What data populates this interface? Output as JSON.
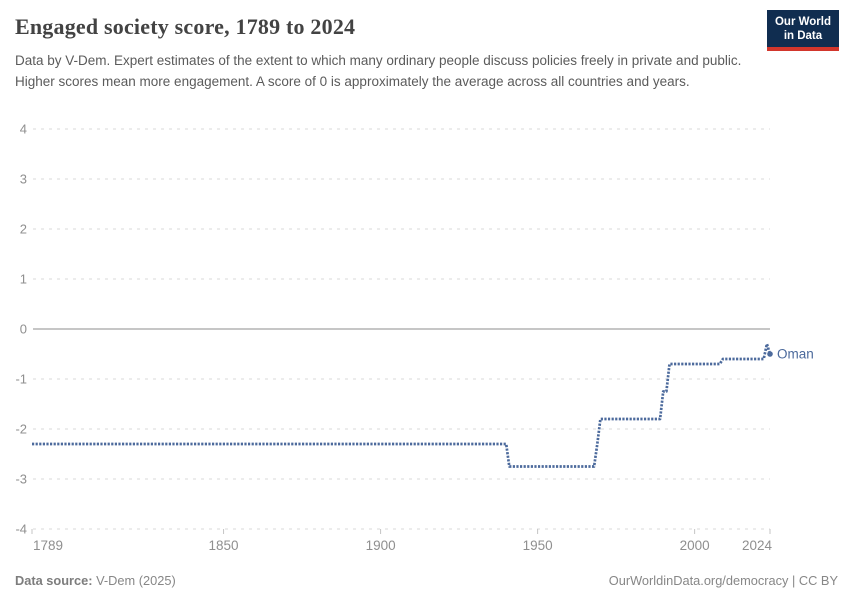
{
  "header": {
    "title": "Engaged society score, 1789 to 2024",
    "subtitle": "Data by V-Dem. Expert estimates of the extent to which many ordinary people discuss policies freely in private and public. Higher scores mean more engagement. A score of 0 is approximately the average across all countries and years.",
    "logo": {
      "line1": "Our World",
      "line2": "in Data"
    }
  },
  "footer": {
    "source_label": "Data source:",
    "source_value": " V-Dem (2025)",
    "attribution": "OurWorldinData.org/democracy | CC BY"
  },
  "chart_data": {
    "type": "line",
    "title": "Engaged society score, 1789 to 2024",
    "entity_label": "Oman",
    "xlim": [
      1789,
      2024
    ],
    "ylim": [
      -4,
      4
    ],
    "x_ticks": [
      1789,
      1850,
      1900,
      1950,
      2000,
      2024
    ],
    "y_ticks": [
      4,
      3,
      2,
      1,
      0,
      -1,
      -2,
      -3,
      -4
    ],
    "grid": "horizontal-dashed",
    "legend_position": "end-of-line-label",
    "series": [
      {
        "name": "Oman",
        "points": [
          [
            1789,
            -2.3
          ],
          [
            1940,
            -2.3
          ],
          [
            1941,
            -2.75
          ],
          [
            1968,
            -2.75
          ],
          [
            1969,
            -2.3
          ],
          [
            1970,
            -1.8
          ],
          [
            1989,
            -1.8
          ],
          [
            1990,
            -1.25
          ],
          [
            1991,
            -1.25
          ],
          [
            1992,
            -0.7
          ],
          [
            2008,
            -0.7
          ],
          [
            2009,
            -0.6
          ],
          [
            2022,
            -0.6
          ],
          [
            2023,
            -0.3
          ],
          [
            2024,
            -0.5
          ]
        ]
      }
    ],
    "colors": {
      "line": "#4c6a9c",
      "grid": "#d8d8d8",
      "zero_line": "#a3a3a3",
      "tick_label": "#8f8f8f",
      "axis_tick": "#c4c4c4"
    }
  }
}
